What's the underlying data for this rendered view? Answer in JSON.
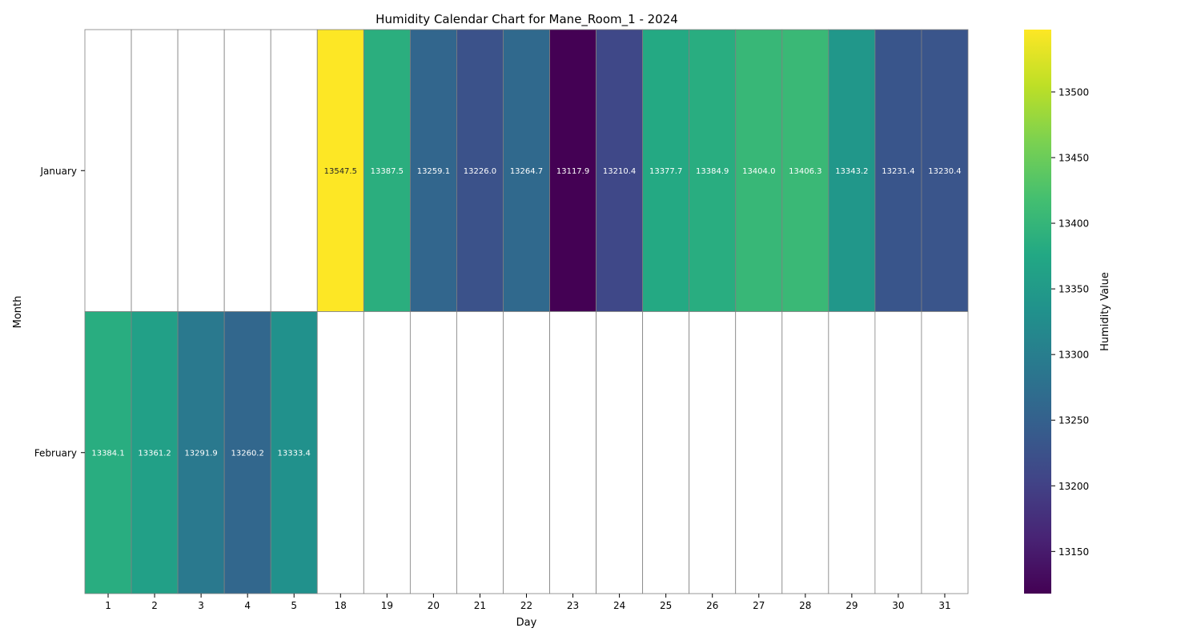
{
  "chart_data": {
    "type": "heatmap",
    "title": "Humidity Calendar Chart for Mane_Room_1 - 2024",
    "xlabel": "Day",
    "ylabel": "Month",
    "colorbar_label": "Humidity Value",
    "colormap": "viridis",
    "cell_border_color": "#808080",
    "x_categories": [
      "1",
      "2",
      "3",
      "4",
      "5",
      "18",
      "19",
      "20",
      "21",
      "22",
      "23",
      "24",
      "25",
      "26",
      "27",
      "28",
      "29",
      "30",
      "31"
    ],
    "y_categories": [
      "January",
      "February"
    ],
    "values": [
      [
        null,
        null,
        null,
        null,
        null,
        13547.5,
        13387.5,
        13259.1,
        13226.0,
        13264.7,
        13117.9,
        13210.4,
        13377.7,
        13384.9,
        13404.0,
        13406.3,
        13343.2,
        13231.4,
        13230.4
      ],
      [
        13384.1,
        13361.2,
        13291.9,
        13260.2,
        13333.4,
        null,
        null,
        null,
        null,
        null,
        null,
        null,
        null,
        null,
        null,
        null,
        null,
        null,
        null
      ]
    ],
    "cell_labels": [
      [
        "",
        "",
        "",
        "",
        "",
        "13547.5",
        "13387.5",
        "13259.1",
        "13226.0",
        "13264.7",
        "13117.9",
        "13210.4",
        "13377.7",
        "13384.9",
        "13404.0",
        "13406.3",
        "13343.2",
        "13231.4",
        "13230.4"
      ],
      [
        "13384.1",
        "13361.2",
        "13291.9",
        "13260.2",
        "13333.4",
        "",
        "",
        "",
        "",
        "",
        "",
        "",
        "",
        "",
        "",
        "",
        "",
        "",
        ""
      ]
    ],
    "color_range": [
      13117.9,
      13547.5
    ],
    "colorbar_ticks": [
      "13150",
      "13200",
      "13250",
      "13300",
      "13350",
      "13400",
      "13450",
      "13500"
    ],
    "colorbar_tick_values": [
      13150,
      13200,
      13250,
      13300,
      13350,
      13400,
      13450,
      13500
    ]
  }
}
